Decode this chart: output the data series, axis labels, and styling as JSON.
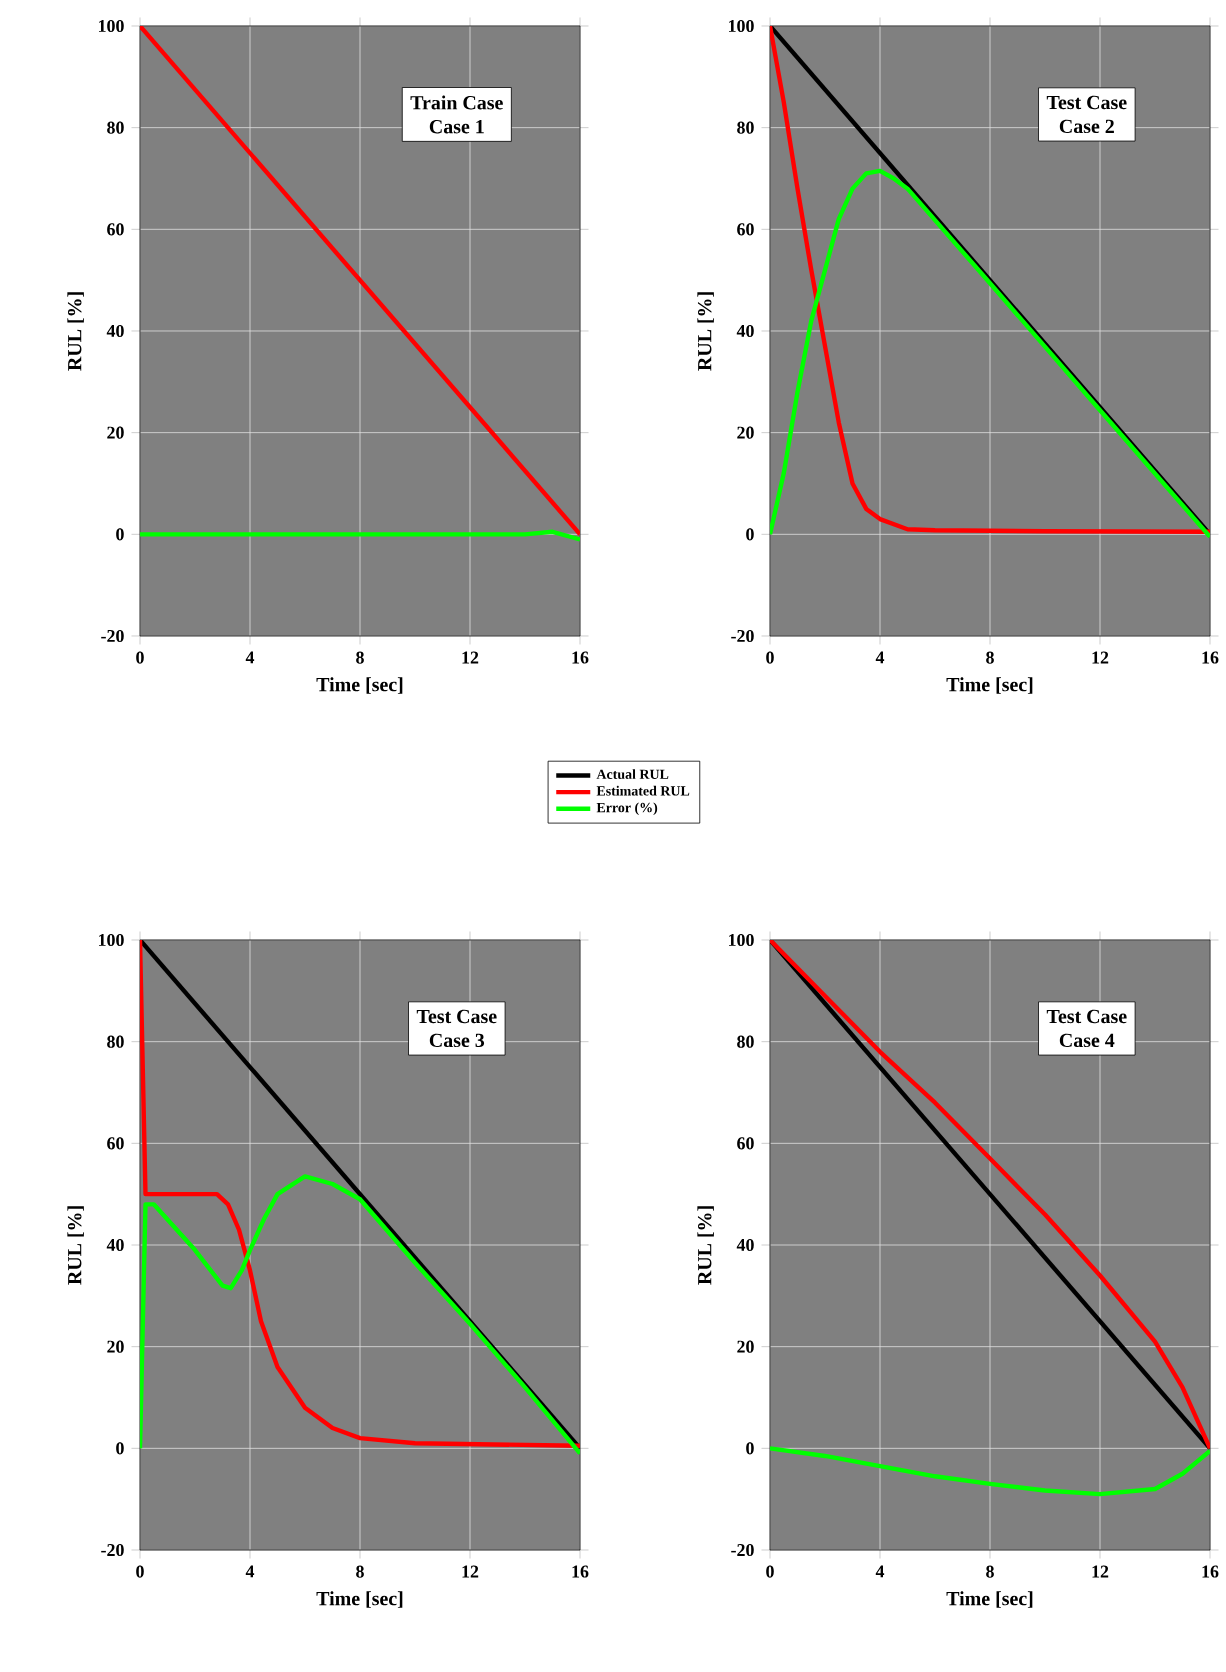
{
  "chart_data": [
    {
      "type": "line",
      "title": "Train Case",
      "subtitle": "Case 1",
      "xlabel": "Time [sec]",
      "ylabel": "RUL [%]",
      "xlim": [
        0,
        16
      ],
      "ylim": [
        -20,
        100
      ],
      "xticks": [
        0,
        4,
        8,
        12,
        16
      ],
      "yticks": [
        -20,
        0,
        20,
        40,
        60,
        80,
        100
      ],
      "grid": true,
      "series": [
        {
          "color": "#ff0000",
          "x": [
            0,
            16
          ],
          "values": [
            100,
            0
          ]
        },
        {
          "color": "#00ff00",
          "x": [
            0,
            4,
            8,
            12,
            14,
            15,
            16
          ],
          "values": [
            0,
            0,
            0,
            0,
            0,
            0.5,
            -1
          ]
        }
      ]
    },
    {
      "type": "line",
      "title": "Test Case",
      "subtitle": "Case 2",
      "xlabel": "Time [sec]",
      "ylabel": "RUL [%]",
      "xlim": [
        0,
        16
      ],
      "ylim": [
        -20,
        100
      ],
      "xticks": [
        0,
        4,
        8,
        12,
        16
      ],
      "yticks": [
        -20,
        0,
        20,
        40,
        60,
        80,
        100
      ],
      "grid": true,
      "legend": "bottom left",
      "series": [
        {
          "name": "Actual RUL",
          "color": "#000000",
          "x": [
            0,
            16
          ],
          "values": [
            100,
            0
          ]
        },
        {
          "name": "Estimated RUL",
          "color": "#ff0000",
          "x": [
            0,
            0.5,
            1,
            1.5,
            2,
            2.5,
            3,
            3.5,
            4,
            5,
            6,
            10,
            16
          ],
          "values": [
            100,
            85,
            68,
            52,
            37,
            22,
            10,
            5,
            3,
            1,
            0.8,
            0.6,
            0.5
          ]
        },
        {
          "name": "Error (%)",
          "color": "#00ff00",
          "x": [
            0,
            0.5,
            1,
            1.5,
            2,
            2.5,
            3,
            3.5,
            4,
            4.5,
            5,
            8,
            12,
            16
          ],
          "values": [
            0,
            12,
            28,
            42,
            52,
            62,
            68,
            71,
            71.5,
            70,
            68,
            49.4,
            24.4,
            -0.5
          ]
        }
      ]
    },
    {
      "type": "line",
      "title": "Test Case",
      "subtitle": "Case 3",
      "xlabel": "Time [sec]",
      "ylabel": "RUL [%]",
      "xlim": [
        0,
        16
      ],
      "ylim": [
        -20,
        100
      ],
      "xticks": [
        0,
        4,
        8,
        12,
        16
      ],
      "yticks": [
        -20,
        0,
        20,
        40,
        60,
        80,
        100
      ],
      "grid": true,
      "series": [
        {
          "color": "#000000",
          "x": [
            0,
            16
          ],
          "values": [
            100,
            0
          ]
        },
        {
          "color": "#ff0000",
          "x": [
            0,
            0.1,
            0.2,
            1,
            2,
            2.8,
            3.2,
            3.6,
            4,
            4.4,
            5,
            6,
            7,
            8,
            10,
            16
          ],
          "values": [
            100,
            75,
            50,
            50,
            50,
            50,
            48,
            43,
            35,
            25,
            16,
            8,
            4,
            2,
            1,
            0.5
          ]
        },
        {
          "color": "#00ff00",
          "x": [
            0,
            0.2,
            0.5,
            1,
            2,
            3,
            3.3,
            3.7,
            4,
            4.5,
            5,
            6,
            7,
            8,
            10,
            12,
            14,
            16
          ],
          "values": [
            0,
            48,
            48,
            45,
            39,
            32,
            31.5,
            35,
            39,
            45,
            50,
            53.5,
            52,
            49,
            36.5,
            24.5,
            12,
            -1
          ]
        }
      ]
    },
    {
      "type": "line",
      "title": "Test Case",
      "subtitle": "Case 4",
      "xlabel": "Time [sec]",
      "ylabel": "RUL [%]",
      "xlim": [
        0,
        16
      ],
      "ylim": [
        -20,
        100
      ],
      "xticks": [
        0,
        4,
        8,
        12,
        16
      ],
      "yticks": [
        -20,
        0,
        20,
        40,
        60,
        80,
        100
      ],
      "grid": true,
      "series": [
        {
          "color": "#000000",
          "x": [
            0,
            16
          ],
          "values": [
            100,
            0
          ]
        },
        {
          "color": "#ff0000",
          "x": [
            0,
            2,
            4,
            6,
            8,
            10,
            12,
            14,
            15,
            16
          ],
          "values": [
            100,
            89,
            78,
            68,
            57,
            46,
            34,
            21,
            12,
            0
          ]
        },
        {
          "color": "#00ff00",
          "x": [
            0,
            2,
            4,
            6,
            8,
            10,
            12,
            14,
            15,
            16
          ],
          "values": [
            0,
            -1.5,
            -3.5,
            -5.5,
            -7,
            -8.3,
            -9,
            -8,
            -5,
            -0.5
          ]
        }
      ]
    }
  ]
}
